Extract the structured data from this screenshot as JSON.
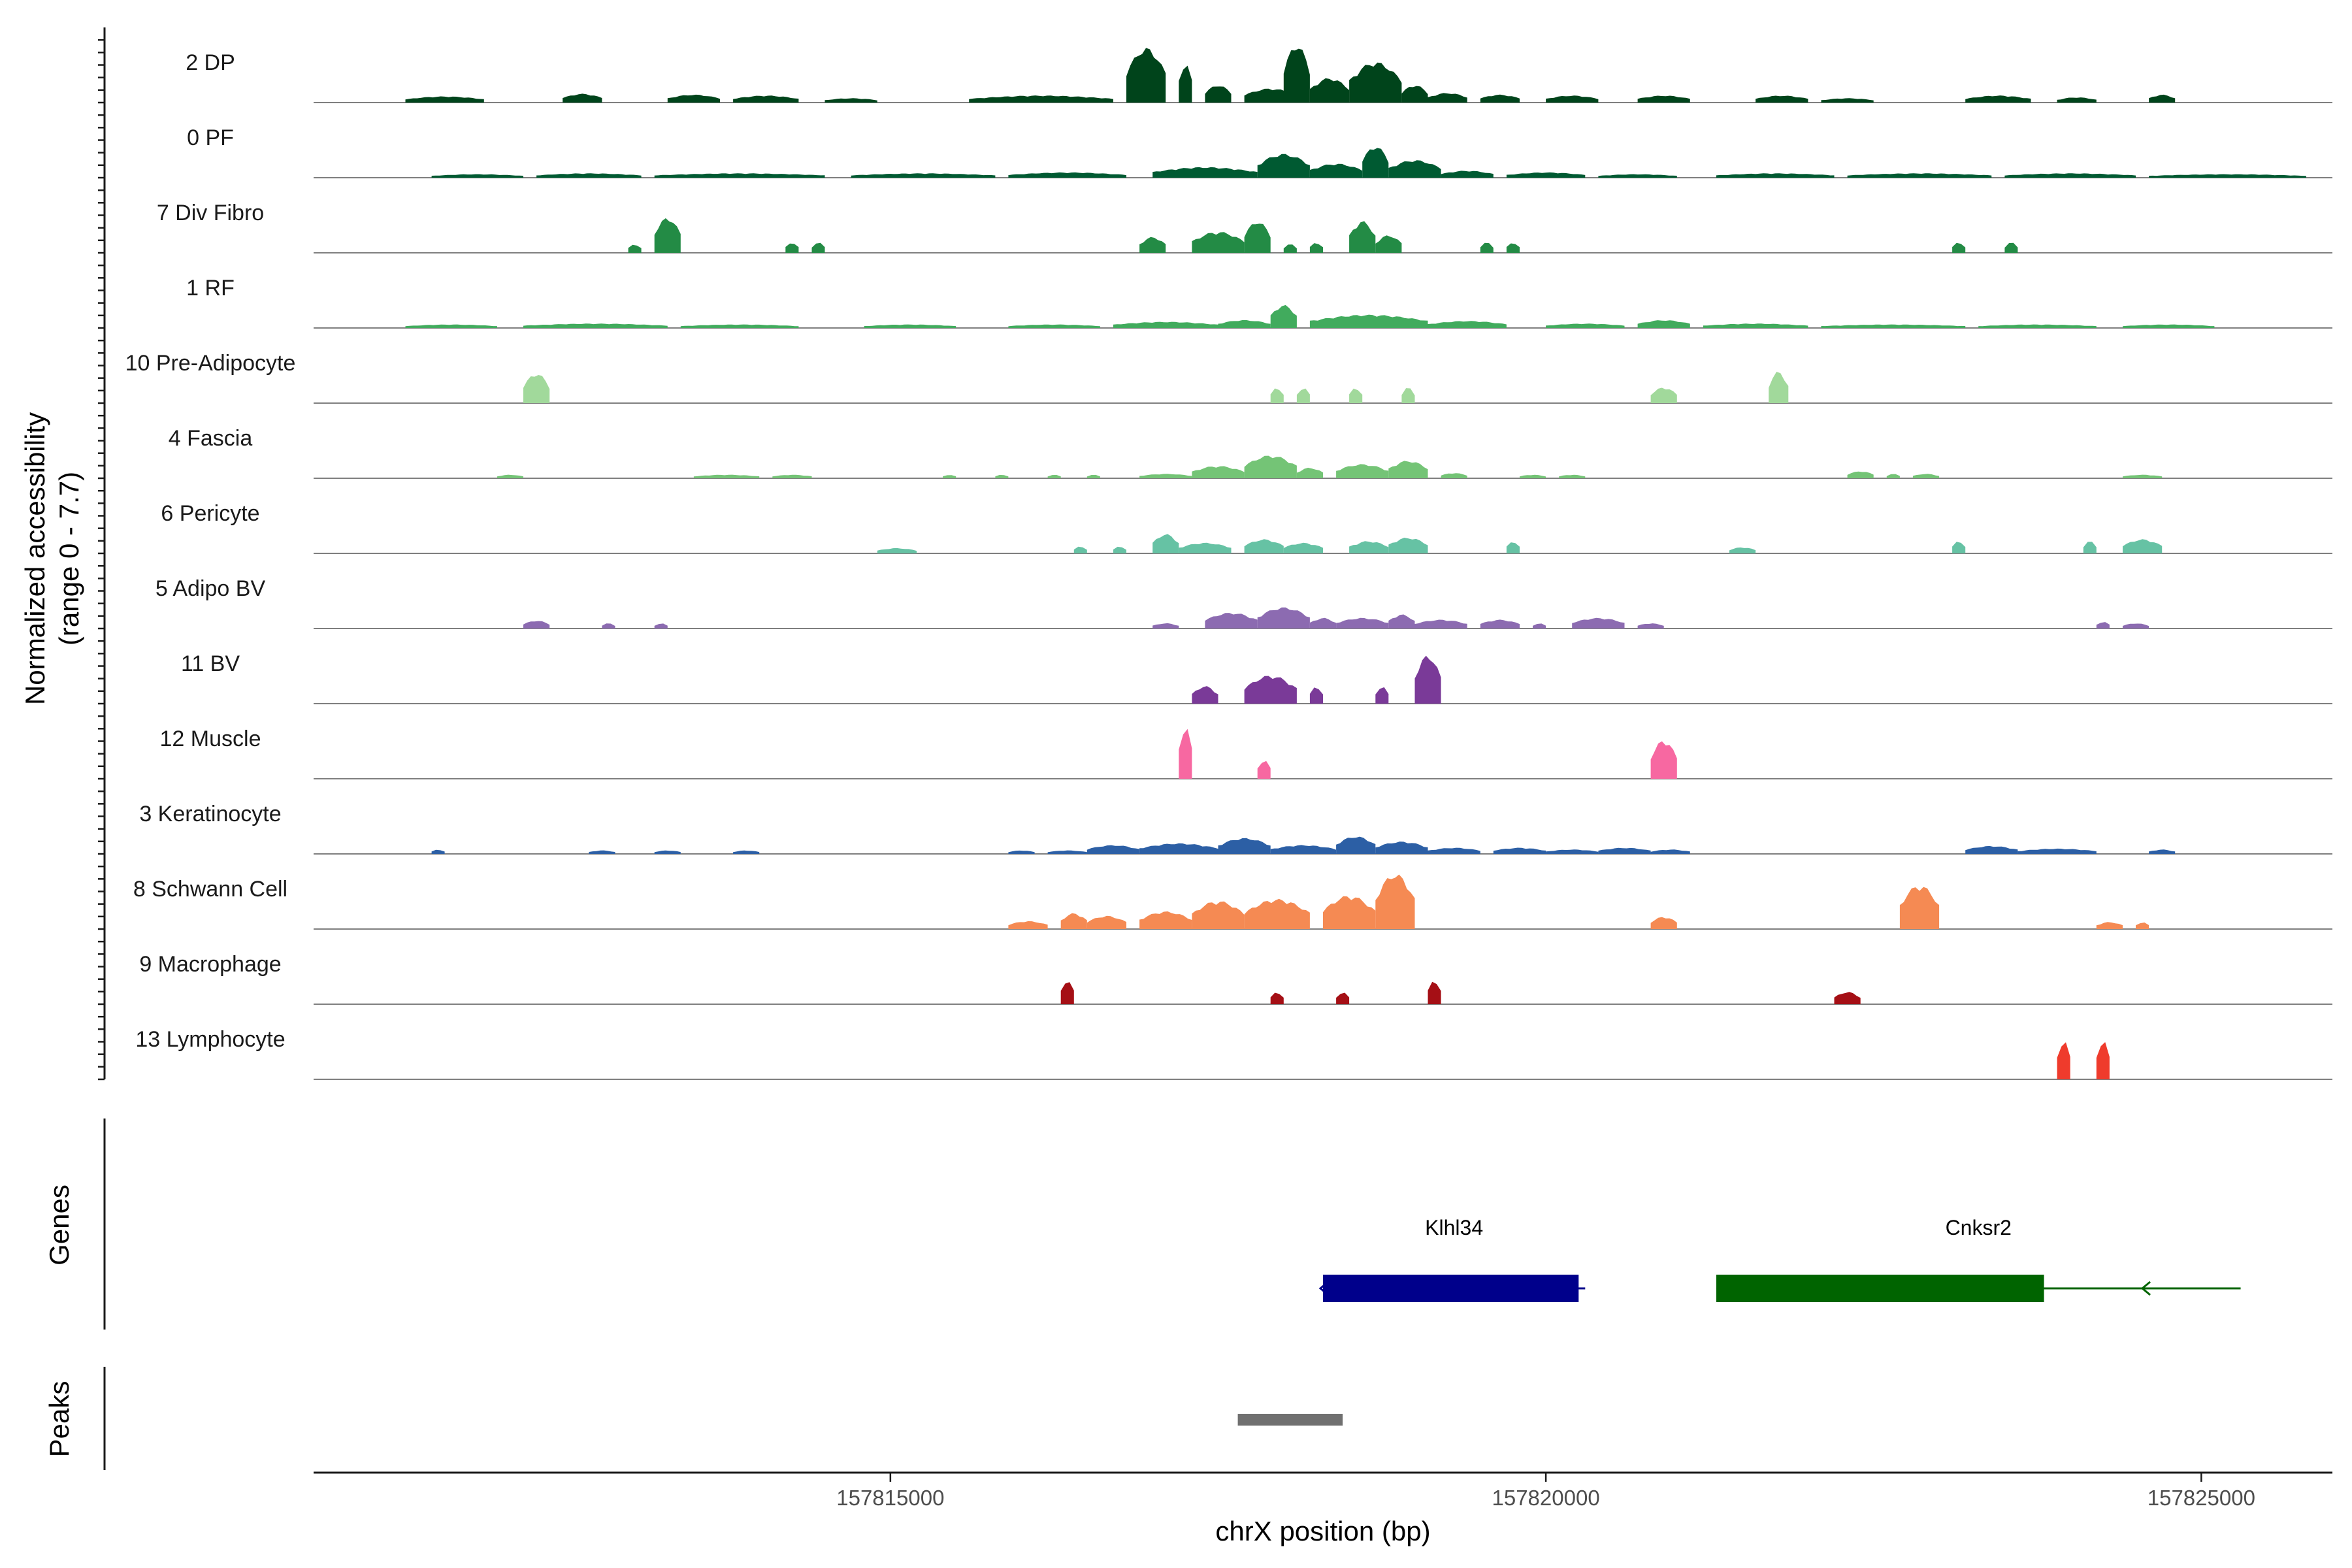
{
  "chart_data": {
    "type": "area",
    "title": "",
    "ylabel_line1": "Normalized accessibility",
    "ylabel_line2": "(range 0 - 7.7)",
    "y_range": [
      0,
      7.7
    ],
    "xlabel": "chrX position (bp)",
    "xlim": [
      157810600,
      157826000
    ],
    "x_ticks": [
      157815000,
      157820000,
      157825000
    ],
    "x_tick_labels": [
      "157815000",
      "157820000",
      "157825000"
    ],
    "genes_label": "Genes",
    "peaks_label": "Peaks",
    "series": [
      {
        "name": "2 DP",
        "color": "#00441b",
        "segments": [
          [
            157811300,
            157811900,
            0.7
          ],
          [
            157812500,
            157812800,
            1.0
          ],
          [
            157813300,
            157813700,
            0.9
          ],
          [
            157813800,
            157814300,
            0.8
          ],
          [
            157814500,
            157814900,
            0.5
          ],
          [
            157815600,
            157816700,
            0.8
          ],
          [
            157816800,
            157817100,
            6.2
          ],
          [
            157817200,
            157817300,
            4.6
          ],
          [
            157817400,
            157817600,
            2.0
          ],
          [
            157817700,
            157818100,
            1.6
          ],
          [
            157818000,
            157818200,
            6.6
          ],
          [
            157818200,
            157818500,
            2.8
          ],
          [
            157818500,
            157818900,
            4.6
          ],
          [
            157818900,
            157819100,
            2.0
          ],
          [
            157819100,
            157819400,
            1.1
          ],
          [
            157819500,
            157819800,
            0.9
          ],
          [
            157820000,
            157820400,
            0.8
          ],
          [
            157820700,
            157821100,
            0.8
          ],
          [
            157821600,
            157822000,
            0.8
          ],
          [
            157822100,
            157822500,
            0.5
          ],
          [
            157823200,
            157823700,
            0.8
          ],
          [
            157823900,
            157824200,
            0.6
          ],
          [
            157824600,
            157824800,
            0.9
          ]
        ]
      },
      {
        "name": "0 PF",
        "color": "#005a32",
        "segments": [
          [
            157811500,
            157812200,
            0.4
          ],
          [
            157812300,
            157813100,
            0.5
          ],
          [
            157813200,
            157814500,
            0.5
          ],
          [
            157814700,
            157815800,
            0.5
          ],
          [
            157815900,
            157816800,
            0.6
          ],
          [
            157817000,
            157817800,
            1.2
          ],
          [
            157817800,
            157818200,
            2.7
          ],
          [
            157818200,
            157818600,
            1.6
          ],
          [
            157818600,
            157818800,
            3.6
          ],
          [
            157818800,
            157819200,
            2.0
          ],
          [
            157819200,
            157819600,
            0.8
          ],
          [
            157819700,
            157820300,
            0.6
          ],
          [
            157820400,
            157821000,
            0.4
          ],
          [
            157821300,
            157822200,
            0.5
          ],
          [
            157822300,
            157823400,
            0.5
          ],
          [
            157823500,
            157824500,
            0.5
          ],
          [
            157824600,
            157825800,
            0.4
          ]
        ]
      },
      {
        "name": "7 Div Fibro",
        "color": "#238b45",
        "segments": [
          [
            157813000,
            157813100,
            1.0
          ],
          [
            157813200,
            157813400,
            4.0
          ],
          [
            157814200,
            157814300,
            1.2
          ],
          [
            157814400,
            157814500,
            1.2
          ],
          [
            157816900,
            157817100,
            1.8
          ],
          [
            157817300,
            157817700,
            2.4
          ],
          [
            157817700,
            157817900,
            3.6
          ],
          [
            157818000,
            157818100,
            1.0
          ],
          [
            157818200,
            157818300,
            1.2
          ],
          [
            157818500,
            157818700,
            3.6
          ],
          [
            157818700,
            157818900,
            2.0
          ],
          [
            157819500,
            157819600,
            1.2
          ],
          [
            157819700,
            157819800,
            1.2
          ],
          [
            157823100,
            157823200,
            1.2
          ],
          [
            157823500,
            157823600,
            1.2
          ]
        ]
      },
      {
        "name": "1 RF",
        "color": "#41ab5d",
        "segments": [
          [
            157811300,
            157812000,
            0.4
          ],
          [
            157812200,
            157813300,
            0.5
          ],
          [
            157813400,
            157814300,
            0.4
          ],
          [
            157814800,
            157815500,
            0.4
          ],
          [
            157815900,
            157816600,
            0.4
          ],
          [
            157816700,
            157817500,
            0.7
          ],
          [
            157817500,
            157817900,
            0.9
          ],
          [
            157817900,
            157818100,
            2.6
          ],
          [
            157818200,
            157819100,
            1.5
          ],
          [
            157819100,
            157819700,
            0.8
          ],
          [
            157820000,
            157820600,
            0.5
          ],
          [
            157820700,
            157821100,
            0.9
          ],
          [
            157821200,
            157822000,
            0.5
          ],
          [
            157822100,
            157823200,
            0.4
          ],
          [
            157823300,
            157824200,
            0.4
          ],
          [
            157824400,
            157825100,
            0.4
          ]
        ]
      },
      {
        "name": "10 Pre-Adipocyte",
        "color": "#a1d99b",
        "segments": [
          [
            157812200,
            157812400,
            3.4
          ],
          [
            157817900,
            157818000,
            1.8
          ],
          [
            157818100,
            157818200,
            1.8
          ],
          [
            157818500,
            157818600,
            1.8
          ],
          [
            157818900,
            157819000,
            1.8
          ],
          [
            157820800,
            157821000,
            1.8
          ],
          [
            157821700,
            157821850,
            3.6
          ]
        ]
      },
      {
        "name": "4 Fascia",
        "color": "#74c476",
        "segments": [
          [
            157812000,
            157812200,
            0.4
          ],
          [
            157813500,
            157814000,
            0.4
          ],
          [
            157814100,
            157814400,
            0.4
          ],
          [
            157815400,
            157815500,
            0.4
          ],
          [
            157815800,
            157815900,
            0.4
          ],
          [
            157816200,
            157816300,
            0.4
          ],
          [
            157816500,
            157816600,
            0.4
          ],
          [
            157816900,
            157817300,
            0.5
          ],
          [
            157817300,
            157817700,
            1.4
          ],
          [
            157817700,
            157818100,
            2.6
          ],
          [
            157818100,
            157818300,
            1.2
          ],
          [
            157818400,
            157818800,
            1.6
          ],
          [
            157818800,
            157819100,
            2.0
          ],
          [
            157819200,
            157819400,
            0.6
          ],
          [
            157819800,
            157820000,
            0.4
          ],
          [
            157820100,
            157820300,
            0.4
          ],
          [
            157822300,
            157822500,
            0.8
          ],
          [
            157822600,
            157822700,
            0.5
          ],
          [
            157822800,
            157823000,
            0.5
          ],
          [
            157824400,
            157824700,
            0.4
          ]
        ]
      },
      {
        "name": "6 Pericyte",
        "color": "#66c2a4",
        "segments": [
          [
            157814900,
            157815200,
            0.6
          ],
          [
            157816400,
            157816500,
            0.8
          ],
          [
            157816700,
            157816800,
            0.8
          ],
          [
            157817000,
            157817200,
            2.2
          ],
          [
            157817200,
            157817600,
            1.2
          ],
          [
            157817700,
            157818000,
            1.6
          ],
          [
            157818000,
            157818300,
            1.2
          ],
          [
            157818500,
            157818800,
            1.4
          ],
          [
            157818800,
            157819100,
            1.8
          ],
          [
            157819700,
            157819800,
            1.4
          ],
          [
            157821400,
            157821600,
            0.7
          ],
          [
            157823100,
            157823200,
            1.4
          ],
          [
            157824100,
            157824200,
            1.4
          ],
          [
            157824400,
            157824700,
            1.6
          ]
        ]
      },
      {
        "name": "5 Adipo BV",
        "color": "#8c6bb1",
        "segments": [
          [
            157812200,
            157812400,
            0.9
          ],
          [
            157812800,
            157812900,
            0.6
          ],
          [
            157813200,
            157813300,
            0.6
          ],
          [
            157817000,
            157817200,
            0.6
          ],
          [
            157817400,
            157817800,
            1.8
          ],
          [
            157817800,
            157818200,
            2.4
          ],
          [
            157818200,
            157818400,
            1.2
          ],
          [
            157818400,
            157818800,
            1.2
          ],
          [
            157818800,
            157819000,
            1.6
          ],
          [
            157819000,
            157819400,
            1.0
          ],
          [
            157819500,
            157819800,
            1.0
          ],
          [
            157819900,
            157820000,
            0.6
          ],
          [
            157820200,
            157820600,
            1.2
          ],
          [
            157820700,
            157820900,
            0.6
          ],
          [
            157824200,
            157824300,
            0.8
          ],
          [
            157824400,
            157824600,
            0.6
          ]
        ]
      },
      {
        "name": "11 BV",
        "color": "#7a3a98",
        "segments": [
          [
            157817300,
            157817500,
            2.0
          ],
          [
            157817700,
            157818100,
            3.2
          ],
          [
            157818200,
            157818300,
            2.0
          ],
          [
            157818700,
            157818800,
            2.0
          ],
          [
            157819000,
            157819200,
            5.5
          ]
        ]
      },
      {
        "name": "12 Muscle",
        "color": "#f768a1",
        "segments": [
          [
            157817200,
            157817300,
            6.2
          ],
          [
            157817800,
            157817900,
            2.2
          ],
          [
            157820800,
            157821000,
            4.4
          ]
        ]
      },
      {
        "name": "3 Keratinocyte",
        "color": "#2c5fa5",
        "segments": [
          [
            157811500,
            157811600,
            0.5
          ],
          [
            157812700,
            157812900,
            0.4
          ],
          [
            157813200,
            157813400,
            0.4
          ],
          [
            157813800,
            157814000,
            0.4
          ],
          [
            157815900,
            157816100,
            0.4
          ],
          [
            157816200,
            157816500,
            0.4
          ],
          [
            157816500,
            157816900,
            1.0
          ],
          [
            157816900,
            157817500,
            1.2
          ],
          [
            157817500,
            157817900,
            1.8
          ],
          [
            157817900,
            157818400,
            1.0
          ],
          [
            157818400,
            157818700,
            2.0
          ],
          [
            157818700,
            157819100,
            1.4
          ],
          [
            157819100,
            157819500,
            0.7
          ],
          [
            157819600,
            157820000,
            0.7
          ],
          [
            157820000,
            157820400,
            0.5
          ],
          [
            157820400,
            157820800,
            0.7
          ],
          [
            157820800,
            157821100,
            0.5
          ],
          [
            157823200,
            157823600,
            0.9
          ],
          [
            157823600,
            157824200,
            0.6
          ],
          [
            157824600,
            157824800,
            0.5
          ]
        ]
      },
      {
        "name": "8 Schwann Cell",
        "color": "#f58a53",
        "segments": [
          [
            157815900,
            157816200,
            0.9
          ],
          [
            157816300,
            157816500,
            1.8
          ],
          [
            157816500,
            157816800,
            1.5
          ],
          [
            157816900,
            157817300,
            2.0
          ],
          [
            157817300,
            157817700,
            3.2
          ],
          [
            157817700,
            157818200,
            3.4
          ],
          [
            157818300,
            157818700,
            3.8
          ],
          [
            157818700,
            157819000,
            6.3
          ],
          [
            157820800,
            157821000,
            1.4
          ],
          [
            157822700,
            157823000,
            5.0
          ],
          [
            157824200,
            157824400,
            0.8
          ],
          [
            157824500,
            157824600,
            0.8
          ]
        ]
      },
      {
        "name": "9 Macrophage",
        "color": "#a50f15",
        "segments": [
          [
            157816300,
            157816400,
            2.8
          ],
          [
            157817900,
            157818000,
            1.4
          ],
          [
            157818400,
            157818500,
            1.4
          ],
          [
            157819100,
            157819200,
            2.8
          ],
          [
            157822200,
            157822400,
            1.4
          ]
        ]
      },
      {
        "name": "13 Lymphocyte",
        "color": "#ef3b2c",
        "segments": [
          [
            157823900,
            157824000,
            4.6
          ],
          [
            157824200,
            157824300,
            4.6
          ]
        ]
      }
    ],
    "genes": [
      {
        "name": "Klhl34",
        "start": 157818300,
        "end": 157820300,
        "thick_start": 157818300,
        "thick_end": 157820250,
        "strand": "-",
        "color": "#00008b"
      },
      {
        "name": "Cnksr2",
        "start": 157821300,
        "end": 157825300,
        "thick_start": 157821300,
        "thick_end": 157823800,
        "strand": "-",
        "color": "#006400"
      }
    ],
    "peaks": [
      {
        "start": 157817650,
        "end": 157818450,
        "color": "#707070"
      }
    ]
  }
}
